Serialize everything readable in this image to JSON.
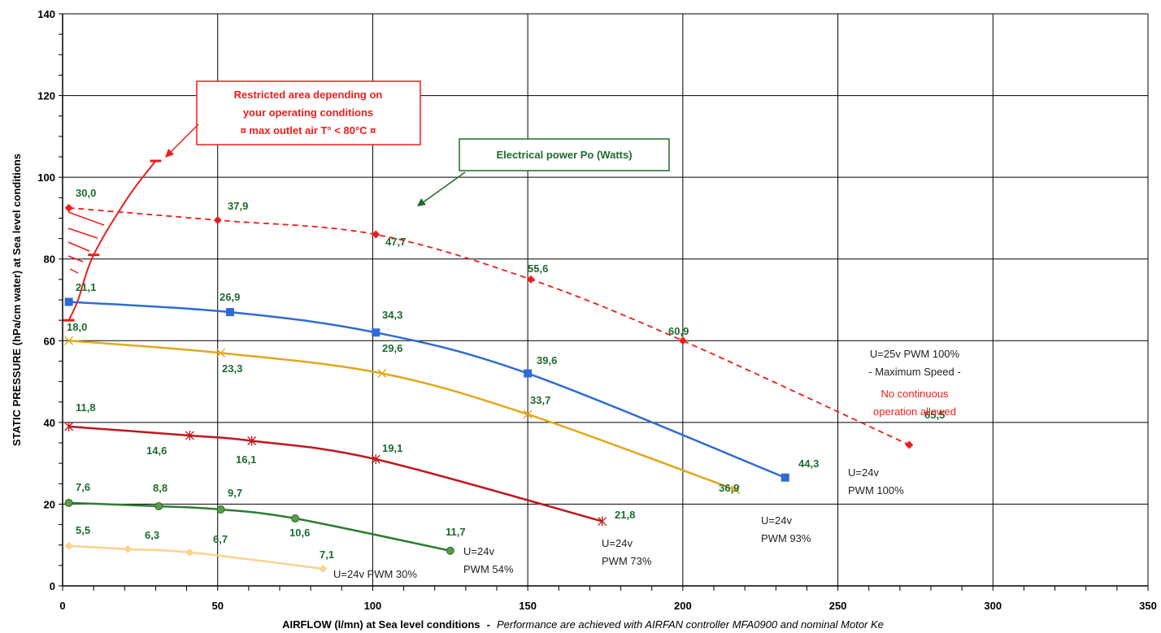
{
  "chart_data": {
    "type": "line",
    "xlabel": "AIRFLOW (l/mn) at Sea level conditions",
    "xlabel_separator": " - ",
    "xlabel_note": "Performance are achieved with AIRFAN controller MFA0900 and nominal Motor Ke",
    "ylabel": "STATIC PRESSURE (hPa/cm water) at Sea level conditions",
    "xlim": [
      0,
      350
    ],
    "ylim": [
      0,
      140
    ],
    "x_ticks": [
      "0",
      "50",
      "100",
      "150",
      "200",
      "250",
      "300",
      "350"
    ],
    "y_ticks": [
      "0",
      "20",
      "40",
      "60",
      "80",
      "100",
      "120",
      "140"
    ],
    "grid": true,
    "series": [
      {
        "name": "U=25v PWM 100%",
        "color": "#ee1c1c",
        "dashed": true,
        "marker": "diamond",
        "points": [
          [
            2,
            92.5
          ],
          [
            50,
            89.5
          ],
          [
            101,
            86
          ],
          [
            151,
            75
          ],
          [
            200,
            60
          ],
          [
            273,
            34.5
          ]
        ],
        "power_labels": [
          "30,0",
          "37,9",
          "47,7",
          "55,6",
          "60,9",
          "65,5"
        ]
      },
      {
        "name": "U=24v PWM 100%",
        "color": "#2f6bd6",
        "dashed": false,
        "marker": "square",
        "points": [
          [
            2,
            69.5
          ],
          [
            54,
            67
          ],
          [
            101,
            62
          ],
          [
            150,
            52
          ],
          [
            233,
            26.5
          ]
        ],
        "power_labels": [
          "21,1",
          "26,9",
          "34,3",
          "39,6",
          "44,3"
        ]
      },
      {
        "name": "U=24v PWM 93%",
        "color": "#e0a91c",
        "dashed": false,
        "marker": "x",
        "points": [
          [
            2,
            60
          ],
          [
            51,
            57
          ],
          [
            103,
            52
          ],
          [
            150,
            42
          ],
          [
            217,
            23.5
          ]
        ],
        "power_labels": [
          "18,0",
          "23,3",
          "29,6",
          "33,7",
          "36,9"
        ]
      },
      {
        "name": "U=24v PWM 73%",
        "color": "#c0171b",
        "dashed": false,
        "marker": "star",
        "points": [
          [
            2,
            39
          ],
          [
            41,
            36.8
          ],
          [
            61,
            35.5
          ],
          [
            101,
            31
          ],
          [
            174,
            15.8
          ]
        ],
        "power_labels": [
          "11,8",
          "14,6",
          "16,1",
          "19,1",
          "21,8"
        ]
      },
      {
        "name": "U=24v PWM 54%",
        "color": "#2e7d32",
        "dashed": false,
        "marker": "circle",
        "points": [
          [
            2,
            20.3
          ],
          [
            31,
            19.5
          ],
          [
            51,
            18.7
          ],
          [
            75,
            16.5
          ],
          [
            125,
            8.6
          ]
        ],
        "power_labels": [
          "7,6",
          "8,8",
          "9,7",
          "10,6",
          "11,7"
        ]
      },
      {
        "name": "U=24v PWM 30%",
        "color": "#ffd28a",
        "dashed": false,
        "marker": "diamond",
        "points": [
          [
            2,
            9.8
          ],
          [
            21,
            9
          ],
          [
            41,
            8.2
          ],
          [
            84,
            4.2
          ]
        ],
        "power_labels": [
          "5,5",
          "6,3",
          "6,7",
          "7,1"
        ]
      }
    ],
    "restricted_curve": {
      "color": "#ee1c1c",
      "points": [
        [
          2,
          65
        ],
        [
          5,
          70
        ],
        [
          10,
          81
        ],
        [
          21,
          95
        ],
        [
          30,
          104
        ]
      ]
    },
    "curve_labels": {
      "max": {
        "line1": "U=25v  PWM 100%",
        "line2": "- Maximum Speed -",
        "note1": "No continuous",
        "note2": "operation allowed"
      },
      "pwm100": {
        "line1": "U=24v",
        "line2": "PWM 100%"
      },
      "pwm93": {
        "line1": "U=24v",
        "line2": "PWM 93%"
      },
      "pwm73": {
        "line1": "U=24v",
        "line2": "PWM 73%"
      },
      "pwm54": {
        "line1": "U=24v",
        "line2": "PWM 54%"
      },
      "pwm30": {
        "line1": "U=24v PWM 30%"
      }
    },
    "annotations": {
      "restricted": {
        "line1": "Restricted area depending on",
        "line2": "your operating conditions",
        "line3": "¤ max outlet air T° < 80°C ¤"
      },
      "power": {
        "text": "Electrical power Po (Watts)"
      }
    }
  }
}
